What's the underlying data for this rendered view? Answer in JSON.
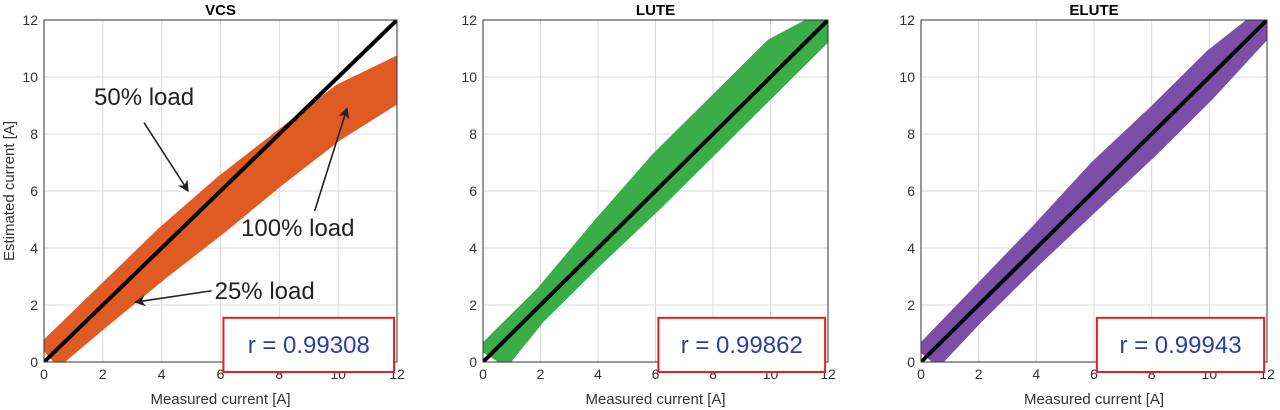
{
  "chart_data": [
    {
      "type": "scatter",
      "title": "VCS",
      "xlabel": "Measured current [A]",
      "ylabel": "Estimated current [A]",
      "xlim": [
        0,
        12
      ],
      "ylim": [
        0,
        12
      ],
      "xticks": [
        "0",
        "2",
        "4",
        "6",
        "8",
        "10",
        "12"
      ],
      "yticks": [
        "0",
        "2",
        "4",
        "6",
        "8",
        "10",
        "12"
      ],
      "grid": true,
      "series": [
        {
          "color": "#e05a24",
          "band_upper": [
            [
              0,
              0.6
            ],
            [
              2,
              2.6
            ],
            [
              4,
              4.6
            ],
            [
              6,
              6.4
            ],
            [
              8,
              8.0
            ],
            [
              10,
              9.6
            ],
            [
              12,
              10.6
            ]
          ],
          "band_lower": [
            [
              0.5,
              0
            ],
            [
              2,
              1.3
            ],
            [
              4,
              3.0
            ],
            [
              6,
              4.6
            ],
            [
              8,
              6.3
            ],
            [
              10,
              7.9
            ],
            [
              12,
              9.2
            ]
          ]
        },
        {
          "color": "#000000",
          "points": [
            [
              0,
              0
            ],
            [
              12,
              12
            ]
          ]
        }
      ],
      "annotations": [
        {
          "text": "50% load",
          "text_at": [
            1.7,
            9.3
          ],
          "arrow_from": [
            3.4,
            8.4
          ],
          "arrow_to": [
            4.9,
            6.0
          ]
        },
        {
          "text": "100% load",
          "text_at": [
            6.7,
            4.7
          ],
          "arrow_from": [
            9.2,
            5.3
          ],
          "arrow_to": [
            10.3,
            8.9
          ]
        },
        {
          "text": "25% load",
          "text_at": [
            5.8,
            2.5
          ],
          "arrow_from": [
            5.7,
            2.5
          ],
          "arrow_to": [
            3.1,
            2.1
          ]
        }
      ],
      "correlation": "r = 0.99308",
      "correlation_box_color": "#e02020"
    },
    {
      "type": "scatter",
      "title": "LUTE",
      "xlabel": "Measured current [A]",
      "ylabel": "",
      "xlim": [
        0,
        12
      ],
      "ylim": [
        0,
        12
      ],
      "xticks": [
        "0",
        "2",
        "4",
        "6",
        "8",
        "10",
        "12"
      ],
      "yticks": [
        "0",
        "2",
        "4",
        "6",
        "8",
        "10",
        "12"
      ],
      "grid": true,
      "series": [
        {
          "color": "#3aad48",
          "band_upper": [
            [
              0,
              0.5
            ],
            [
              2,
              2.5
            ],
            [
              4,
              4.9
            ],
            [
              6,
              7.2
            ],
            [
              8,
              9.2
            ],
            [
              10,
              11.2
            ],
            [
              11.5,
              12
            ],
            [
              12,
              12
            ]
          ],
          "band_lower": [
            [
              0.8,
              0
            ],
            [
              2,
              1.5
            ],
            [
              4,
              3.5
            ],
            [
              6,
              5.4
            ],
            [
              8,
              7.4
            ],
            [
              10,
              9.4
            ],
            [
              12,
              11.4
            ]
          ]
        },
        {
          "color": "#000000",
          "points": [
            [
              0,
              0
            ],
            [
              12,
              12
            ]
          ]
        }
      ],
      "annotations": [],
      "correlation": "r = 0.99862",
      "correlation_box_color": "#e02020"
    },
    {
      "type": "scatter",
      "title": "ELUTE",
      "xlabel": "Measured current [A]",
      "ylabel": "",
      "xlim": [
        0,
        12
      ],
      "ylim": [
        0,
        12
      ],
      "xticks": [
        "0",
        "2",
        "4",
        "6",
        "8",
        "10",
        "12"
      ],
      "yticks": [
        "0",
        "2",
        "4",
        "6",
        "8",
        "10",
        "12"
      ],
      "grid": true,
      "series": [
        {
          "color": "#7b4fa8",
          "band_upper": [
            [
              0,
              0.5
            ],
            [
              2,
              2.6
            ],
            [
              4,
              4.7
            ],
            [
              6,
              6.9
            ],
            [
              8,
              8.8
            ],
            [
              10,
              10.8
            ],
            [
              11.5,
              12
            ],
            [
              12,
              12
            ]
          ],
          "band_lower": [
            [
              0.6,
              0
            ],
            [
              2,
              1.5
            ],
            [
              4,
              3.5
            ],
            [
              6,
              5.4
            ],
            [
              8,
              7.3
            ],
            [
              10,
              9.3
            ],
            [
              12,
              11.5
            ]
          ]
        },
        {
          "color": "#000000",
          "points": [
            [
              0,
              0
            ],
            [
              12,
              12
            ]
          ]
        }
      ],
      "annotations": [],
      "correlation": "r = 0.99943",
      "correlation_box_color": "#e02020"
    }
  ]
}
